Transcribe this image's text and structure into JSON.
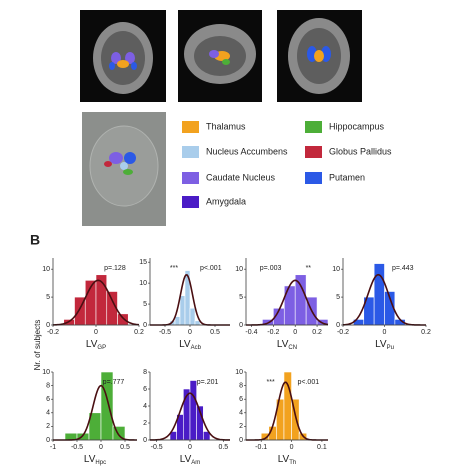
{
  "panel_label": "B",
  "y_label": "Nr. of subjects",
  "legend": [
    {
      "name": "Thalamus",
      "color": "#f2a21f"
    },
    {
      "name": "Nucleus Accumbens",
      "color": "#a9cdeb"
    },
    {
      "name": "Caudate Nucleus",
      "color": "#7d5fe3"
    },
    {
      "name": "Amygdala",
      "color": "#4a1cc6"
    },
    {
      "name": "Hippocampus",
      "color": "#4dae38"
    },
    {
      "name": "Globus Pallidus",
      "color": "#c2283c"
    },
    {
      "name": "Putamen",
      "color": "#2b59e6"
    }
  ],
  "chart_data": [
    {
      "type": "histogram",
      "xlabel": "LV",
      "xlabel_sub": "GP",
      "color": "#c2283c",
      "annotations": [
        "p=.128"
      ],
      "bins": [
        -0.15,
        -0.1,
        -0.05,
        0,
        0.05,
        0.1,
        0.15
      ],
      "counts": [
        1,
        5,
        8,
        9,
        6,
        2
      ],
      "fit": {
        "mean": 0.01,
        "sd": 0.06,
        "peak": 8
      },
      "xlim": [
        -0.2,
        0.2
      ],
      "xticks": [
        -0.2,
        0,
        0.2
      ],
      "ylim": [
        0,
        12
      ],
      "yticks": [
        0,
        5,
        10
      ]
    },
    {
      "type": "histogram",
      "xlabel": "LV",
      "xlabel_sub": "Acb",
      "color": "#a9cdeb",
      "annotations": [
        "***",
        "p<.001"
      ],
      "bins": [
        -0.4,
        -0.3,
        -0.2,
        -0.1,
        0,
        0.1,
        0.2
      ],
      "counts": [
        1,
        2,
        7,
        13,
        4,
        1
      ],
      "fit": {
        "mean": -0.07,
        "sd": 0.12,
        "peak": 12
      },
      "xlim": [
        -0.8,
        0.8
      ],
      "xticks": [
        -0.5,
        0,
        0.5
      ],
      "ylim": [
        0,
        16
      ],
      "yticks": [
        0,
        5,
        10,
        15
      ]
    },
    {
      "type": "histogram",
      "xlabel": "LV",
      "xlabel_sub": "CN",
      "color": "#7d5fe3",
      "annotations": [
        "p=.003",
        "**"
      ],
      "bins": [
        -0.3,
        -0.2,
        -0.1,
        0,
        0.1,
        0.2,
        0.3
      ],
      "counts": [
        1,
        3,
        7,
        9,
        5,
        1
      ],
      "fit": {
        "mean": 0.0,
        "sd": 0.1,
        "peak": 8
      },
      "xlim": [
        -0.45,
        0.3
      ],
      "xticks": [
        -0.4,
        -0.2,
        0,
        0.2
      ],
      "ylim": [
        0,
        12
      ],
      "yticks": [
        0,
        5,
        10
      ]
    },
    {
      "type": "histogram",
      "xlabel": "LV",
      "xlabel_sub": "Pu",
      "color": "#2b59e6",
      "annotations": [
        "p=.443"
      ],
      "bins": [
        -0.15,
        -0.1,
        -0.05,
        0,
        0.05,
        0.1
      ],
      "counts": [
        1,
        5,
        11,
        6,
        1
      ],
      "fit": {
        "mean": -0.03,
        "sd": 0.05,
        "peak": 9
      },
      "xlim": [
        -0.2,
        0.2
      ],
      "xticks": [
        -0.2,
        0,
        0.2
      ],
      "ylim": [
        0,
        12
      ],
      "yticks": [
        0,
        5,
        10
      ]
    },
    {
      "type": "histogram",
      "xlabel": "LV",
      "xlabel_sub": "Hpc",
      "color": "#4dae38",
      "annotations": [
        "p=.777"
      ],
      "bins": [
        -0.75,
        -0.5,
        -0.25,
        0,
        0.25,
        0.5
      ],
      "counts": [
        1,
        1,
        4,
        10,
        2
      ],
      "fit": {
        "mean": 0.0,
        "sd": 0.17,
        "peak": 8
      },
      "xlim": [
        -1,
        0.75
      ],
      "xticks": [
        -1,
        -0.5,
        0,
        0.5
      ],
      "ylim": [
        0,
        10
      ],
      "yticks": [
        0,
        2,
        4,
        6,
        8,
        10
      ]
    },
    {
      "type": "histogram",
      "xlabel": "LV",
      "xlabel_sub": "Am",
      "color": "#4a1cc6",
      "annotations": [
        "p=.201"
      ],
      "bins": [
        -0.3,
        -0.2,
        -0.1,
        0,
        0.1,
        0.2,
        0.3
      ],
      "counts": [
        1,
        3,
        6,
        7,
        4,
        1
      ],
      "fit": {
        "mean": 0.0,
        "sd": 0.15,
        "peak": 5.5
      },
      "xlim": [
        -0.6,
        0.6
      ],
      "xticks": [
        -0.5,
        0,
        0.5
      ],
      "ylim": [
        0,
        8
      ],
      "yticks": [
        0,
        2,
        4,
        6,
        8
      ]
    },
    {
      "type": "histogram",
      "xlabel": "LV",
      "xlabel_sub": "Th",
      "color": "#f2a21f",
      "annotations": [
        "***",
        "p<.001"
      ],
      "bins": [
        -0.1,
        -0.075,
        -0.05,
        -0.025,
        0,
        0.025,
        0.05
      ],
      "counts": [
        1,
        2,
        6,
        10,
        6,
        1
      ],
      "fit": {
        "mean": -0.02,
        "sd": 0.025,
        "peak": 8.5
      },
      "xlim": [
        -0.15,
        0.12
      ],
      "xticks": [
        -0.1,
        0,
        0.1
      ],
      "ylim": [
        0,
        10
      ],
      "yticks": [
        0,
        2,
        4,
        6,
        8,
        10
      ]
    }
  ]
}
